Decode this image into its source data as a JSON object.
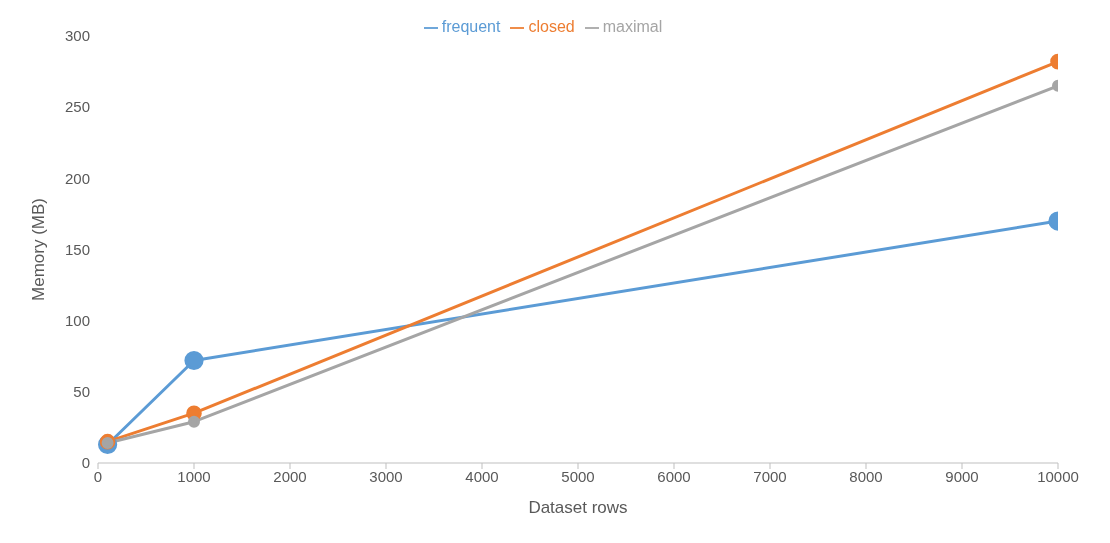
{
  "chart_data": {
    "type": "line",
    "xlabel": "Dataset rows",
    "ylabel": "Memory (MB)",
    "x": [
      100,
      1000,
      10000
    ],
    "series": [
      {
        "name": "frequent",
        "color": "#5b9bd5",
        "values": [
          13,
          72,
          170
        ]
      },
      {
        "name": "closed",
        "color": "#ed7d31",
        "values": [
          15,
          35,
          282
        ]
      },
      {
        "name": "maximal",
        "color": "#a5a5a5",
        "values": [
          14,
          29,
          265
        ]
      }
    ],
    "xlim": [
      0,
      10000
    ],
    "xticks": [
      0,
      1000,
      2000,
      3000,
      4000,
      5000,
      6000,
      7000,
      8000,
      9000,
      10000
    ],
    "ylim": [
      0,
      300
    ],
    "yticks": [
      0,
      50,
      100,
      150,
      200,
      250,
      300
    ],
    "grid": false,
    "legend": "top",
    "marker": "circle",
    "line_style": "solid"
  }
}
